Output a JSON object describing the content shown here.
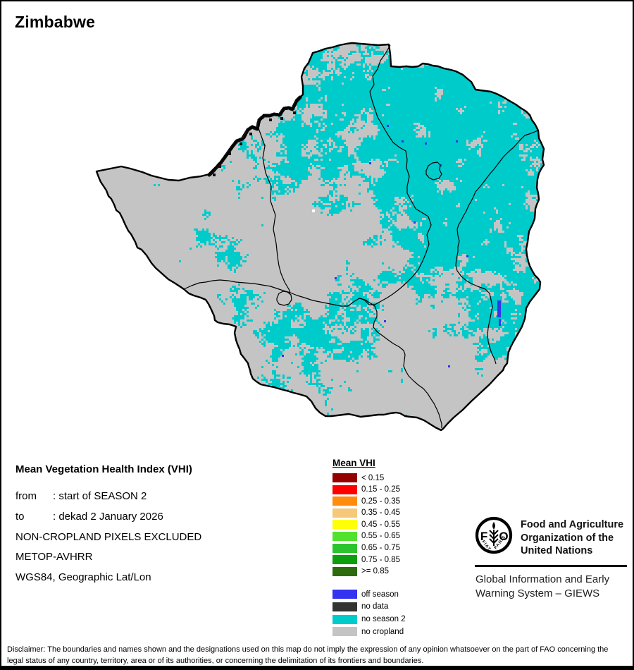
{
  "title": "Zimbabwe",
  "info": {
    "heading": "Mean Vegetation Health Index (VHI)",
    "rows": [
      {
        "label": "from",
        "value": ": start of SEASON 2"
      },
      {
        "label": "to",
        "value": ": dekad 2 January 2026"
      }
    ],
    "lines": [
      "NON-CROPLAND PIXELS EXCLUDED",
      "METOP-AVHRR",
      "WGS84, Geographic Lat/Lon"
    ]
  },
  "vhi_legend": {
    "title": "Mean VHI",
    "classes": [
      {
        "label": "< 0.15",
        "color": "#940000"
      },
      {
        "label": "0.15 - 0.25",
        "color": "#FE0000"
      },
      {
        "label": "0.25 - 0.35",
        "color": "#FF8C0E"
      },
      {
        "label": "0.35 - 0.45",
        "color": "#F6C879"
      },
      {
        "label": "0.45 - 0.55",
        "color": "#FFFF05"
      },
      {
        "label": "0.55 - 0.65",
        "color": "#52E22E"
      },
      {
        "label": "0.65 - 0.75",
        "color": "#2CC42C"
      },
      {
        "label": "0.75 - 0.85",
        "color": "#0C9E0C"
      },
      {
        "label": ">= 0.85",
        "color": "#2E6B0F"
      }
    ]
  },
  "status_legend": [
    {
      "label": "off season",
      "color": "#3333F0"
    },
    {
      "label": "no data",
      "color": "#333333"
    },
    {
      "label": "no season 2",
      "color": "#00CBCB"
    },
    {
      "label": "no cropland",
      "color": "#C4C4C4"
    }
  ],
  "map": {
    "fill": "#C4C4C4",
    "speckle": "#00CBCB",
    "outline": "#000000",
    "no_data": "#111111",
    "off_season": "#3333F0"
  },
  "fao": {
    "emblem_letter_f": "F",
    "emblem_letter_o": "O",
    "motto_left": "FIAT",
    "motto_right": "PANIS",
    "org_line1": "Food and Agriculture",
    "org_line2": "Organization of the",
    "org_line3": "United Nations",
    "giews_line1": "Global Information and Early",
    "giews_line2": "Warning System – GIEWS"
  },
  "disclaimer": "Disclaimer: The boundaries and names shown and the designations used on this map do not imply the expression of any opinion whatsoever on the part of FAO concerning the legal status of any country, territory, area or of its authorities, or concerning the delimitation of its frontiers and boundaries."
}
